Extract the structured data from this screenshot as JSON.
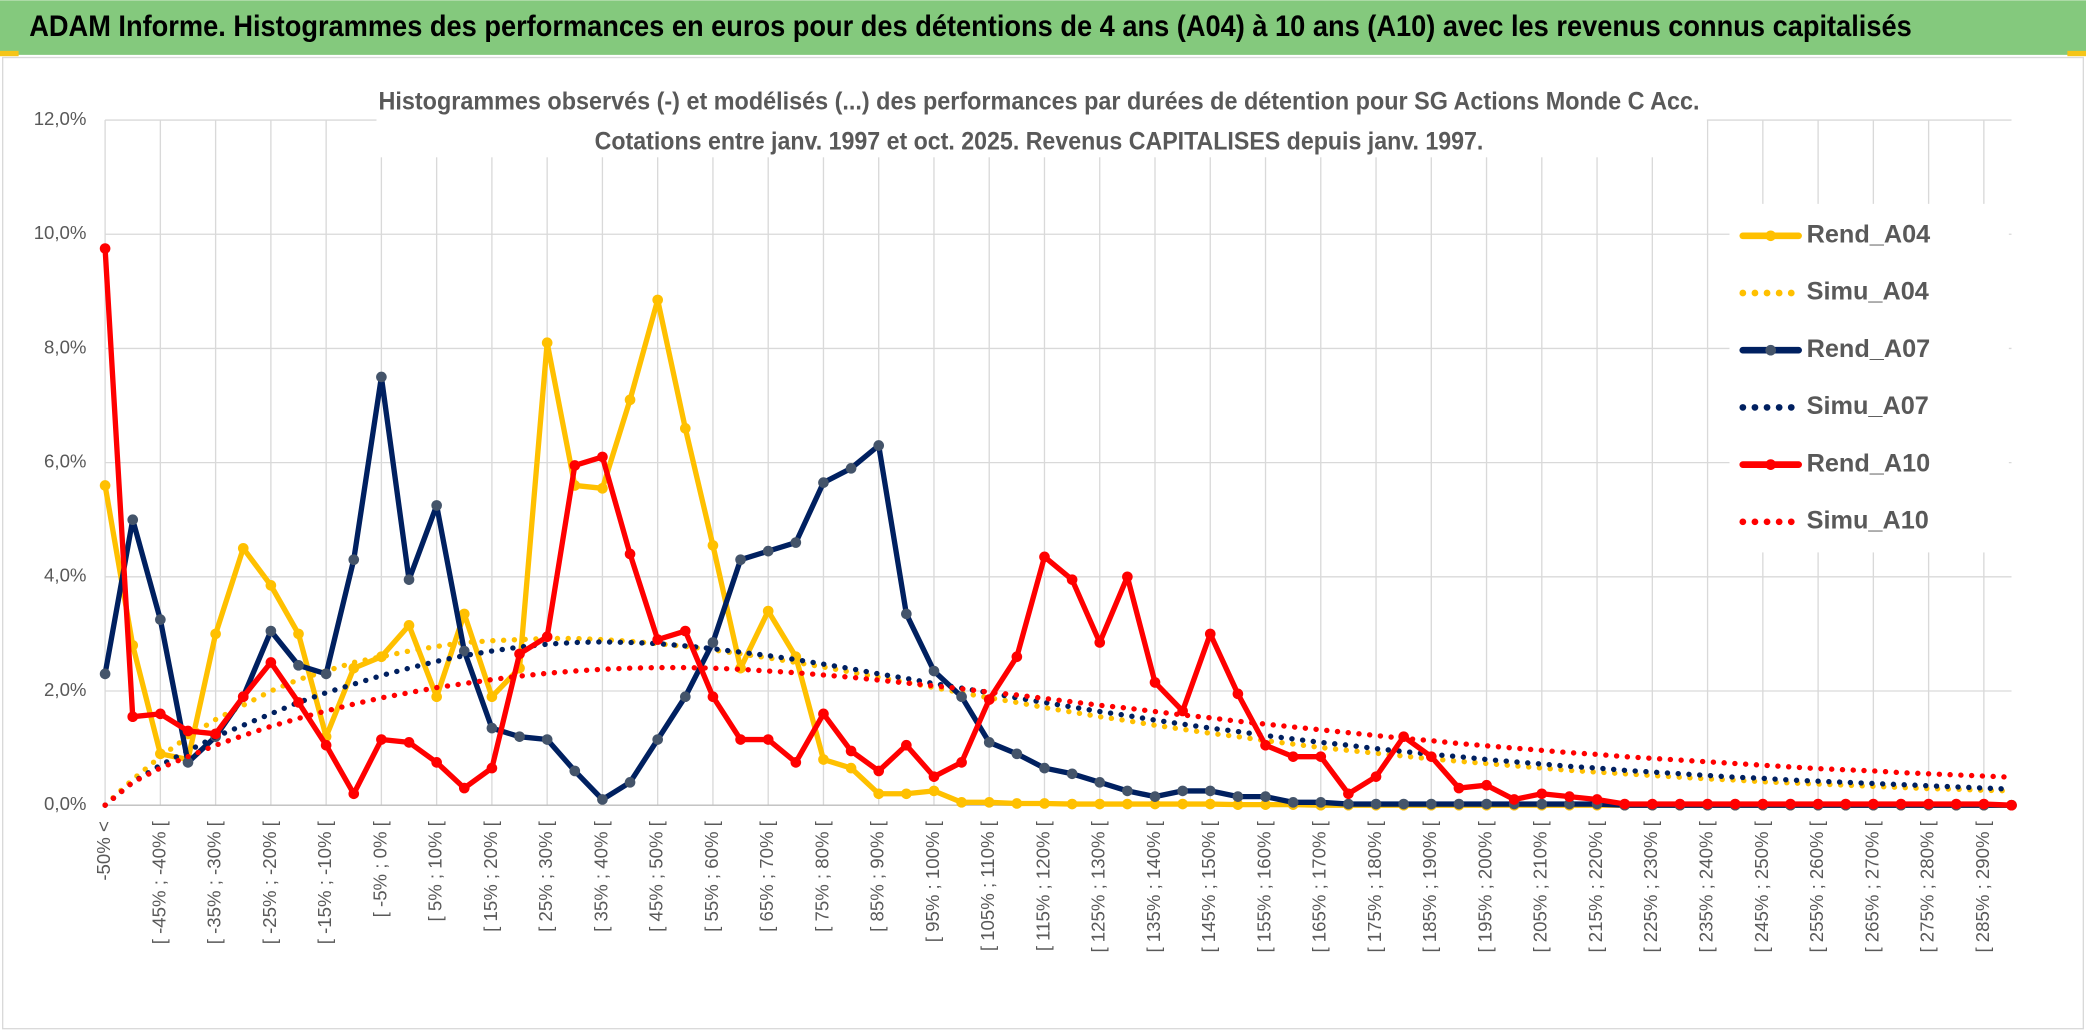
{
  "banner": {
    "title": "ADAM Informe. Histogrammes des performances en euros pour des détentions de 4 ans (A04) à 10 ans (A10) avec les revenus connus capitalisés"
  },
  "chart_data": {
    "type": "line",
    "title": "Histogrammes observés (-) et modélisés (...) des performances par durées de détention pour SG Actions Monde C Acc.",
    "subtitle": "Cotations entre janv. 1997 et oct. 2025. Revenus CAPITALISES depuis janv. 1997.",
    "categories": [
      "-50% <",
      null,
      "[ -45% ; -40% [",
      null,
      "[ -35% ; -30% [",
      null,
      "[ -25% ; -20% [",
      null,
      "[ -15% ; -10% [",
      null,
      "[ -5% ; 0% [",
      null,
      "[ 5% ; 10% [",
      null,
      "[ 15% ; 20% [",
      null,
      "[ 25% ; 30% [",
      null,
      "[ 35% ; 40% [",
      null,
      "[ 45% ; 50% [",
      null,
      "[ 55% ; 60% [",
      null,
      "[ 65% ; 70% [",
      null,
      "[ 75% ; 80% [",
      null,
      "[ 85% ; 90% [",
      null,
      "[ 95% ; 100% [",
      null,
      "[ 105% ; 110% [",
      null,
      "[ 115% ; 120% [",
      null,
      "[ 125% ; 130% [",
      null,
      "[ 135% ; 140% [",
      null,
      "[ 145% ; 150% [",
      null,
      "[ 155% ; 160% [",
      null,
      "[ 165% ; 170% [",
      null,
      "[ 175% ; 180% [",
      null,
      "[ 185% ; 190% [",
      null,
      "[ 195% ; 200% [",
      null,
      "[ 205% ; 210% [",
      null,
      "[ 215% ; 220% [",
      null,
      "[ 225% ; 230% [",
      null,
      "[ 235% ; 240% [",
      null,
      "[ 245% ; 250% [",
      null,
      "[ 255% ; 260% [",
      null,
      "[ 265% ; 270% [",
      null,
      "[ 275% ; 280% [",
      null,
      "[ 285% ; 290% [",
      null
    ],
    "ylim": [
      0,
      12
    ],
    "yticks": [
      {
        "value": 0,
        "label": "0,0%"
      },
      {
        "value": 2,
        "label": "2,0%"
      },
      {
        "value": 4,
        "label": "4,0%"
      },
      {
        "value": 6,
        "label": "6,0%"
      },
      {
        "value": 8,
        "label": "8,0%"
      },
      {
        "value": 10,
        "label": "10,0%"
      },
      {
        "value": 12,
        "label": "12,0%"
      }
    ],
    "grid": true,
    "legend": "right",
    "series": [
      {
        "name": "Rend_A04",
        "color": "#ffc000",
        "style": "solid",
        "markers": true,
        "values": [
          5.6,
          2.8,
          0.9,
          0.8,
          3.0,
          4.5,
          3.85,
          3.0,
          1.2,
          2.4,
          2.6,
          3.15,
          1.9,
          3.35,
          1.9,
          2.4,
          8.1,
          5.6,
          5.55,
          7.1,
          8.85,
          6.6,
          4.55,
          2.4,
          3.4,
          2.6,
          0.8,
          0.65,
          0.2,
          0.2,
          0.25,
          0.05,
          0.05,
          0.03,
          0.03,
          0.02,
          0.02,
          0.02,
          0.02,
          0.02,
          0.02,
          0.01,
          0.01,
          0.01,
          0,
          0,
          0,
          0,
          0,
          0,
          0,
          0,
          0,
          0,
          0,
          0,
          0,
          0,
          0,
          0,
          0,
          0,
          0,
          0,
          0,
          0,
          0,
          0,
          0,
          0
        ]
      },
      {
        "name": "Simu_A04",
        "color": "#ffc000",
        "style": "dotted",
        "markers": false,
        "values": [
          0,
          0.45,
          0.85,
          1.2,
          1.5,
          1.75,
          2.0,
          2.2,
          2.35,
          2.5,
          2.6,
          2.7,
          2.78,
          2.85,
          2.88,
          2.9,
          2.92,
          2.92,
          2.9,
          2.87,
          2.83,
          2.78,
          2.72,
          2.65,
          2.58,
          2.5,
          2.42,
          2.33,
          2.24,
          2.15,
          2.06,
          1.97,
          1.88,
          1.8,
          1.71,
          1.63,
          1.55,
          1.48,
          1.4,
          1.33,
          1.26,
          1.2,
          1.13,
          1.07,
          1.01,
          0.96,
          0.91,
          0.86,
          0.81,
          0.77,
          0.73,
          0.69,
          0.65,
          0.61,
          0.58,
          0.55,
          0.52,
          0.49,
          0.46,
          0.44,
          0.41,
          0.39,
          0.37,
          0.35,
          0.33,
          0.31,
          0.29,
          0.28,
          0.26,
          0.25
        ]
      },
      {
        "name": "Rend_A07",
        "color": "#002060",
        "style": "solid",
        "markers": true,
        "values": [
          2.3,
          5.0,
          3.25,
          0.75,
          1.2,
          1.9,
          3.05,
          2.45,
          2.3,
          4.3,
          7.5,
          3.95,
          5.25,
          2.7,
          1.35,
          1.2,
          1.15,
          0.6,
          0.1,
          0.4,
          1.15,
          1.9,
          2.85,
          4.3,
          4.45,
          4.6,
          5.65,
          5.9,
          6.3,
          3.35,
          2.35,
          1.9,
          1.1,
          0.9,
          0.65,
          0.55,
          0.4,
          0.25,
          0.15,
          0.25,
          0.25,
          0.15,
          0.15,
          0.05,
          0.05,
          0.02,
          0.02,
          0.02,
          0.02,
          0.02,
          0.02,
          0.02,
          0.02,
          0.02,
          0.02,
          0,
          0,
          0,
          0,
          0,
          0,
          0,
          0,
          0,
          0,
          0,
          0,
          0,
          0,
          0
        ]
      },
      {
        "name": "Simu_A07",
        "color": "#002060",
        "style": "dotted",
        "markers": false,
        "values": [
          0,
          0.4,
          0.7,
          0.95,
          1.2,
          1.4,
          1.6,
          1.8,
          1.97,
          2.12,
          2.27,
          2.4,
          2.52,
          2.62,
          2.7,
          2.77,
          2.82,
          2.85,
          2.86,
          2.85,
          2.83,
          2.79,
          2.74,
          2.68,
          2.62,
          2.55,
          2.47,
          2.39,
          2.3,
          2.22,
          2.13,
          2.05,
          1.97,
          1.88,
          1.8,
          1.72,
          1.64,
          1.57,
          1.49,
          1.42,
          1.35,
          1.29,
          1.22,
          1.16,
          1.1,
          1.05,
          0.99,
          0.94,
          0.89,
          0.85,
          0.8,
          0.76,
          0.72,
          0.68,
          0.65,
          0.61,
          0.58,
          0.55,
          0.52,
          0.49,
          0.47,
          0.44,
          0.42,
          0.4,
          0.38,
          0.36,
          0.34,
          0.32,
          0.3,
          0.28
        ]
      },
      {
        "name": "Rend_A10",
        "color": "#ff0000",
        "style": "solid",
        "markers": true,
        "values": [
          9.75,
          1.55,
          1.6,
          1.3,
          1.25,
          1.9,
          2.5,
          1.8,
          1.05,
          0.2,
          1.15,
          1.1,
          0.75,
          0.3,
          0.65,
          2.65,
          2.95,
          5.95,
          6.1,
          4.4,
          2.9,
          3.05,
          1.9,
          1.15,
          1.15,
          0.75,
          1.6,
          0.95,
          0.6,
          1.05,
          0.5,
          0.75,
          1.85,
          2.6,
          4.35,
          3.95,
          2.85,
          4.0,
          2.15,
          1.65,
          3.0,
          1.95,
          1.05,
          0.85,
          0.85,
          0.2,
          0.5,
          1.2,
          0.85,
          0.3,
          0.35,
          0.1,
          0.2,
          0.15,
          0.1,
          0.02,
          0.02,
          0.02,
          0.02,
          0.02,
          0.02,
          0.02,
          0.02,
          0.02,
          0.02,
          0.02,
          0.02,
          0.02,
          0.02,
          0
        ]
      },
      {
        "name": "Simu_A10",
        "color": "#ff0000",
        "style": "dotted",
        "markers": false,
        "values": [
          0,
          0.4,
          0.65,
          0.85,
          1.05,
          1.22,
          1.38,
          1.52,
          1.65,
          1.77,
          1.88,
          1.97,
          2.06,
          2.13,
          2.2,
          2.26,
          2.31,
          2.35,
          2.38,
          2.4,
          2.41,
          2.41,
          2.4,
          2.38,
          2.35,
          2.32,
          2.28,
          2.24,
          2.19,
          2.14,
          2.09,
          2.04,
          1.98,
          1.93,
          1.87,
          1.81,
          1.75,
          1.7,
          1.64,
          1.58,
          1.53,
          1.47,
          1.42,
          1.37,
          1.32,
          1.27,
          1.22,
          1.17,
          1.13,
          1.08,
          1.04,
          1.0,
          0.96,
          0.92,
          0.89,
          0.85,
          0.82,
          0.79,
          0.76,
          0.73,
          0.7,
          0.67,
          0.64,
          0.62,
          0.6,
          0.57,
          0.55,
          0.53,
          0.51,
          0.49
        ]
      }
    ]
  }
}
